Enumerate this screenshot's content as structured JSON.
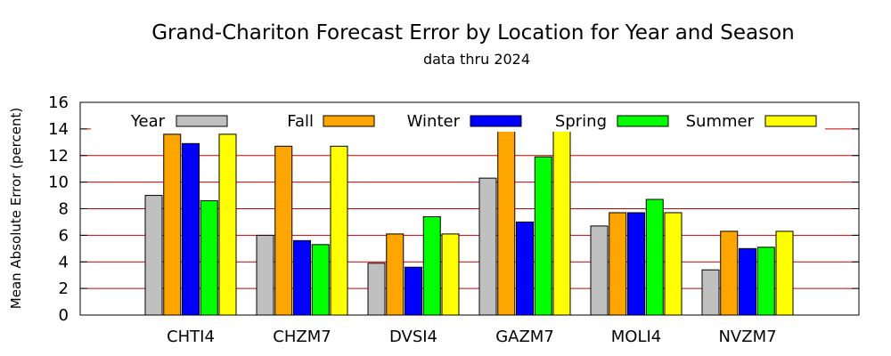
{
  "chart_data": {
    "type": "bar",
    "title": "Grand-Chariton Forecast Error by Location for Year and Season",
    "subtitle": "data thru 2024",
    "xlabel": "",
    "ylabel": "Mean Absolute Error (percent)",
    "ylim": [
      0,
      16
    ],
    "yticks": [
      0,
      2,
      4,
      6,
      8,
      10,
      12,
      14,
      16
    ],
    "grid": true,
    "legend_placement": "top",
    "categories": [
      "CHTI4",
      "CHZM7",
      "DVSI4",
      "GAZM7",
      "MOLI4",
      "NVZM7"
    ],
    "series": [
      {
        "name": "Year",
        "color": "#c0c0c0",
        "values": [
          9.0,
          6.0,
          3.9,
          10.3,
          6.7,
          3.4
        ]
      },
      {
        "name": "Fall",
        "color": "#ffa500",
        "values": [
          13.6,
          12.7,
          6.1,
          13.9,
          7.7,
          6.3
        ]
      },
      {
        "name": "Winter",
        "color": "#0000ff",
        "values": [
          12.9,
          5.6,
          3.6,
          7.0,
          7.7,
          5.0
        ]
      },
      {
        "name": "Spring",
        "color": "#00ff00",
        "values": [
          8.6,
          5.3,
          7.4,
          11.9,
          8.7,
          5.1
        ]
      },
      {
        "name": "Summer",
        "color": "#ffff00",
        "values": [
          13.6,
          12.7,
          6.1,
          13.9,
          7.7,
          6.3
        ]
      }
    ],
    "gridline_color": "#cc0000"
  }
}
